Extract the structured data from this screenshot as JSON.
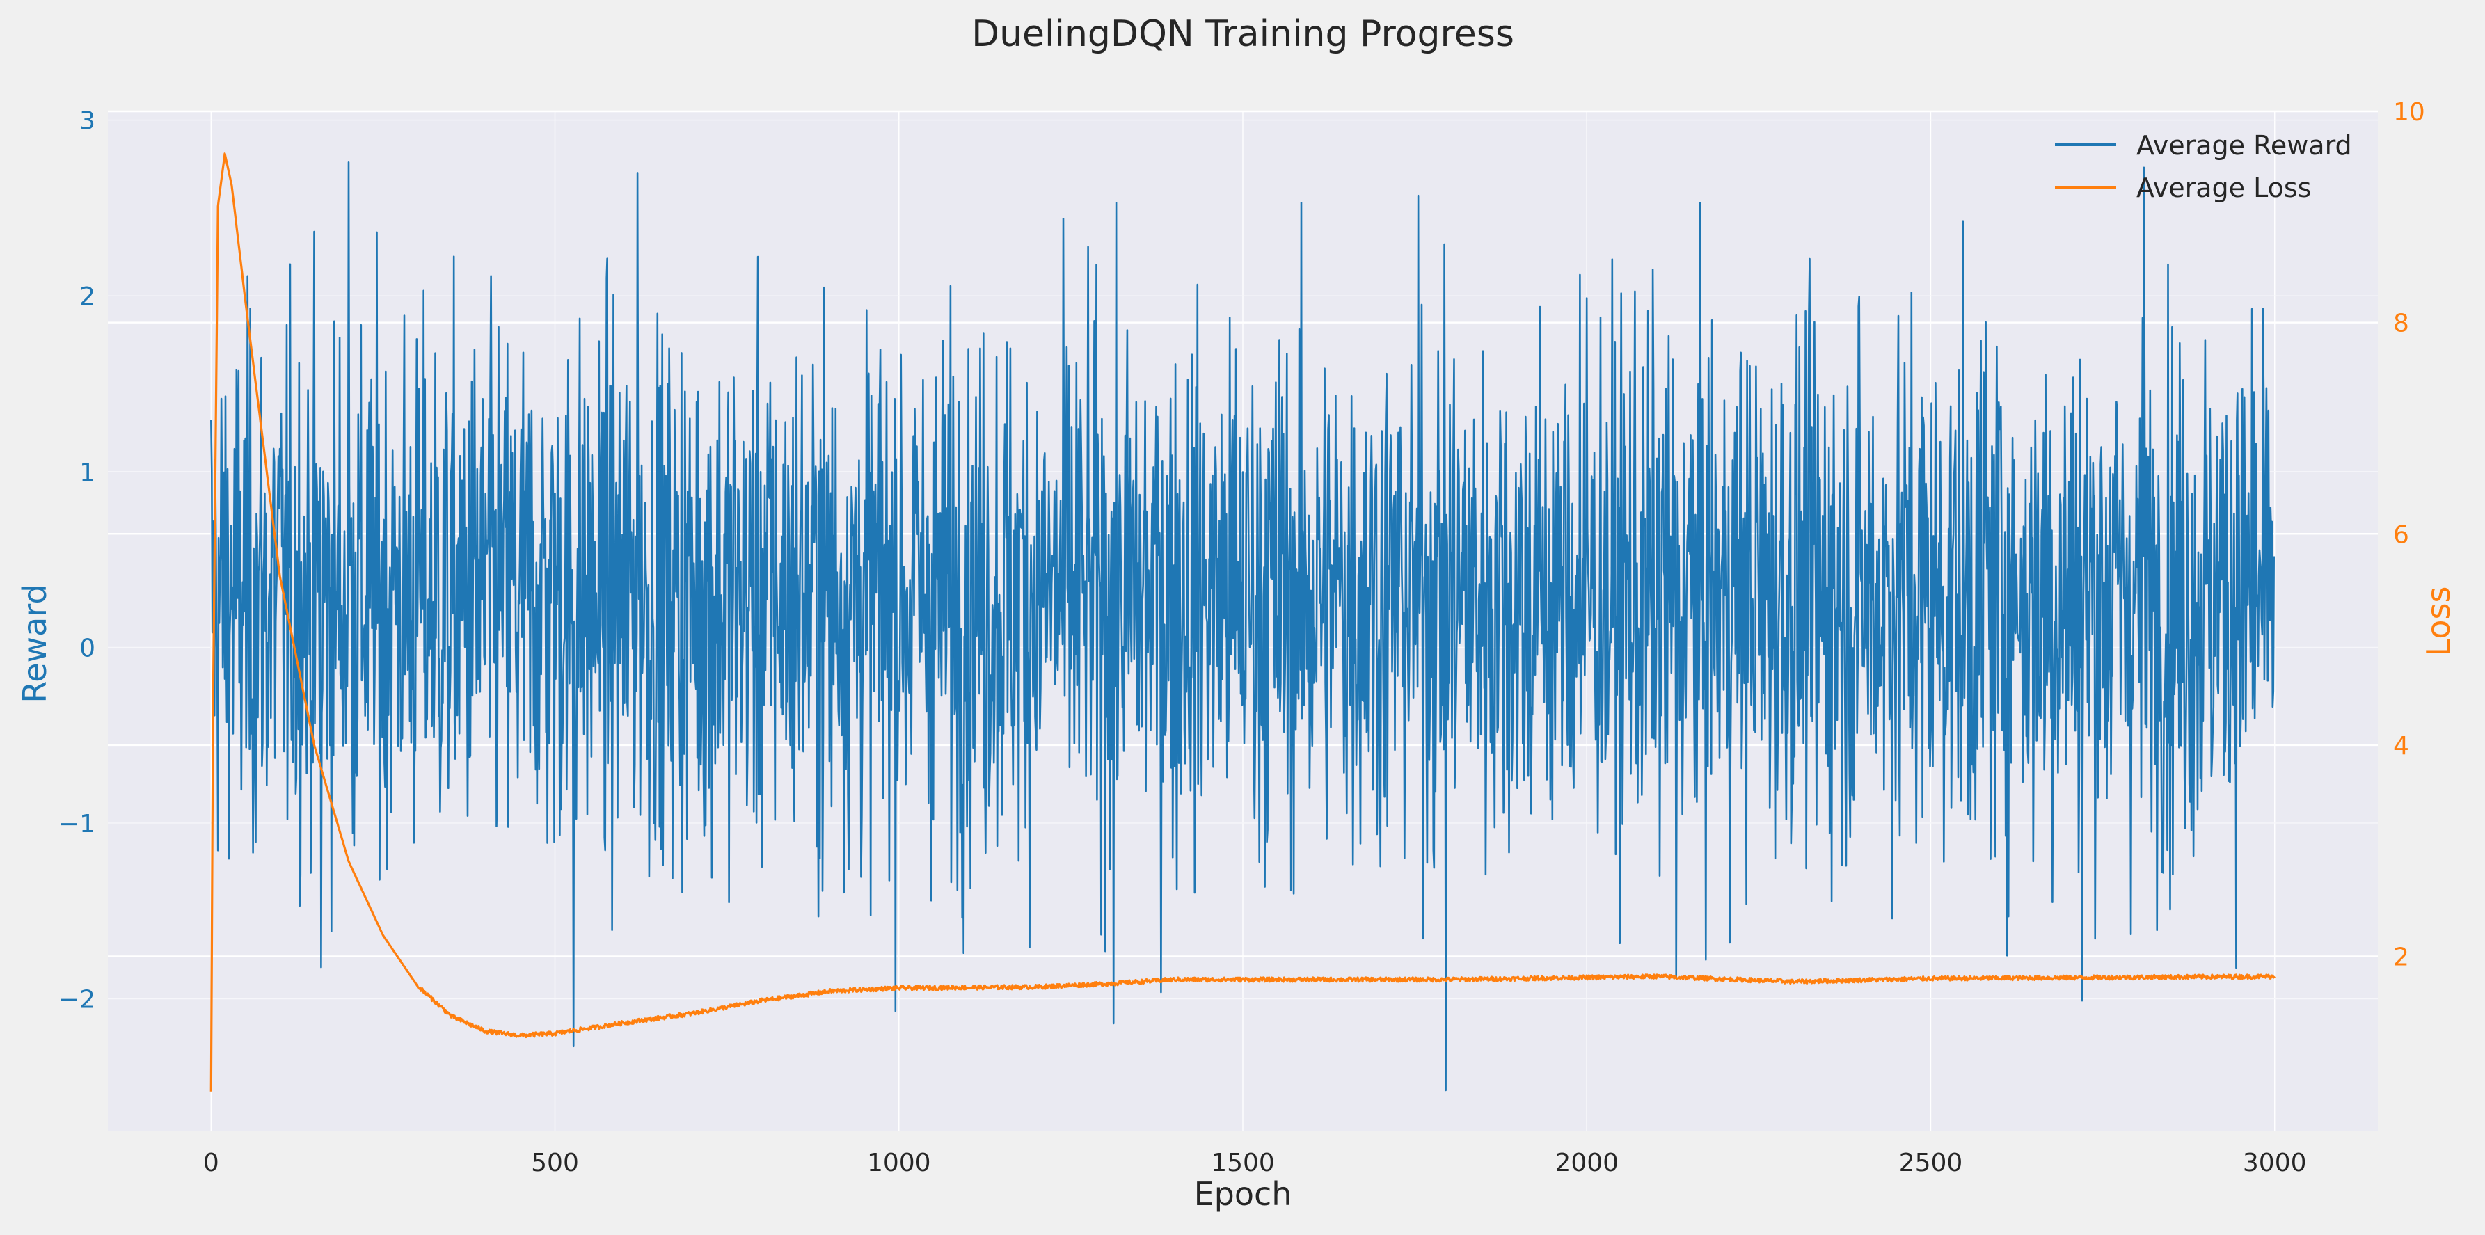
{
  "chart_data": {
    "type": "line",
    "title": "DuelingDQN Training Progress",
    "xlabel": "Epoch",
    "xlim": [
      -150,
      3150
    ],
    "xticks": [
      0,
      500,
      1000,
      1500,
      2000,
      2500,
      3000
    ],
    "grid": true,
    "legend_position": "top-right",
    "axes": {
      "left": {
        "label": "Reward",
        "color": "#1f77b4",
        "lim": [
          -2.75,
          3.05
        ],
        "ticks": [
          -2,
          -1,
          0,
          1,
          2,
          3
        ],
        "tick_labels": [
          "−2",
          "−1",
          "0",
          "1",
          "2",
          "3"
        ]
      },
      "right": {
        "label": "Loss",
        "color": "#ff7f0e",
        "lim": [
          0.35,
          10.0
        ],
        "ticks": [
          2,
          4,
          6,
          8,
          10
        ],
        "tick_labels": [
          "2",
          "4",
          "6",
          "8",
          "10"
        ]
      }
    },
    "series": [
      {
        "name": "Average Reward",
        "axis": "left",
        "color": "#1f77b4",
        "x_range": [
          0,
          2999
        ],
        "mean": 0.3,
        "std": 0.75,
        "y_min": -2.52,
        "y_max": 2.78,
        "peaks": [
          [
            200,
            2.76
          ],
          [
            620,
            2.7
          ],
          [
            1755,
            2.57
          ],
          [
            2810,
            2.73
          ],
          [
            1990,
            2.12
          ],
          [
            2580,
            1.85
          ]
        ],
        "troughs": [
          [
            1795,
            -2.52
          ],
          [
            527,
            -2.27
          ],
          [
            1312,
            -2.14
          ],
          [
            2720,
            -2.01
          ],
          [
            160,
            -1.82
          ],
          [
            2130,
            -1.88
          ]
        ]
      },
      {
        "name": "Average Loss",
        "axis": "right",
        "color": "#ff7f0e",
        "x": [
          0,
          3,
          10,
          20,
          30,
          50,
          75,
          100,
          150,
          200,
          250,
          300,
          350,
          400,
          450,
          500,
          600,
          700,
          800,
          900,
          1000,
          1200,
          1300,
          1400,
          1500,
          1800,
          2100,
          2300,
          2500,
          3000
        ],
        "y": [
          0.72,
          4.4,
          9.1,
          9.6,
          9.3,
          8.2,
          6.9,
          5.6,
          4.0,
          2.9,
          2.2,
          1.72,
          1.43,
          1.29,
          1.25,
          1.27,
          1.37,
          1.46,
          1.58,
          1.67,
          1.7,
          1.71,
          1.74,
          1.78,
          1.78,
          1.78,
          1.81,
          1.76,
          1.79,
          1.81
        ]
      }
    ]
  }
}
